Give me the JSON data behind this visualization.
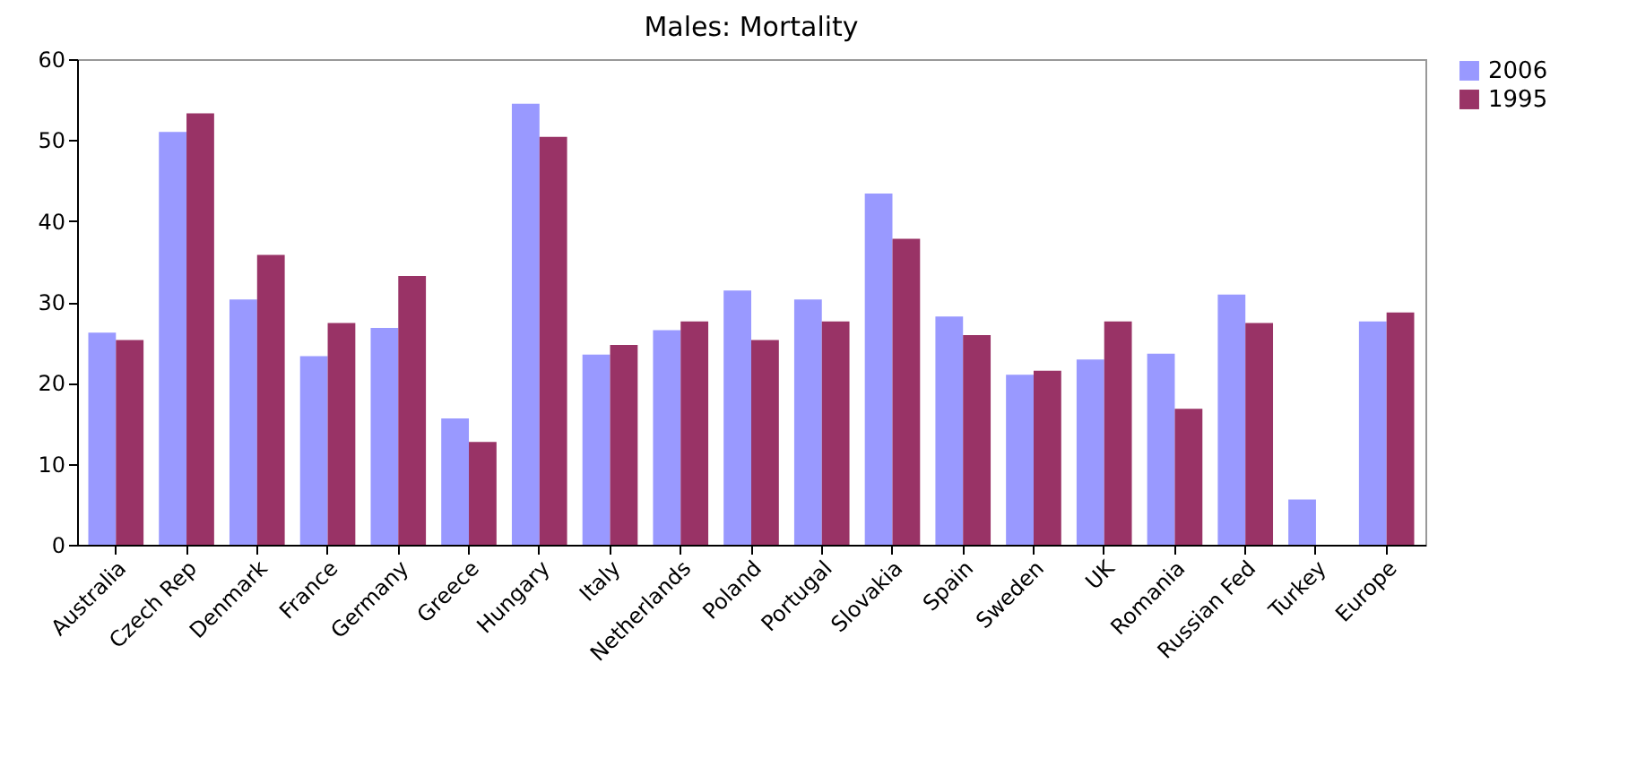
{
  "chart_data": {
    "type": "bar",
    "title": "Males: Mortality",
    "categories": [
      "Australia",
      "Czech Rep",
      "Denmark",
      "France",
      "Germany",
      "Greece",
      "Hungary",
      "Italy",
      "Netherlands",
      "Poland",
      "Portugal",
      "Slovakia",
      "Spain",
      "Sweden",
      "UK",
      "Romania",
      "Russian Fed",
      "Turkey",
      "Europe"
    ],
    "series": [
      {
        "name": "2006",
        "color": "#9999ff",
        "values": [
          26.2,
          51,
          30.3,
          23.3,
          26.8,
          15.6,
          54.5,
          23.5,
          26.5,
          31.4,
          30.3,
          43.4,
          28.2,
          21,
          22.9,
          23.6,
          30.9,
          5.6,
          27.6
        ]
      },
      {
        "name": "1995",
        "color": "#993366",
        "values": [
          25.3,
          53.3,
          35.8,
          27.4,
          33.2,
          12.7,
          50.4,
          24.7,
          27.6,
          25.3,
          27.6,
          37.8,
          25.9,
          21.5,
          27.6,
          16.8,
          27.4,
          null,
          28.7
        ]
      }
    ],
    "ylim": [
      0,
      60
    ],
    "yticks": [
      0,
      10,
      20,
      30,
      40,
      50,
      60
    ],
    "grid": false,
    "legend": "right"
  }
}
